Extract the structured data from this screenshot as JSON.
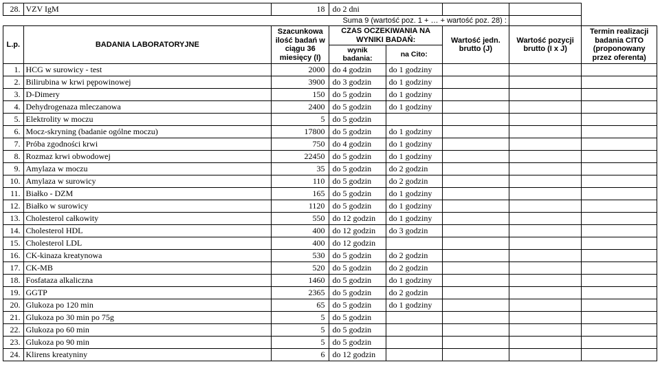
{
  "top_row": {
    "num": "28.",
    "name": "VZV IgM",
    "qty": "18",
    "wait": "do 2 dni"
  },
  "sum_label": "Suma 9 (wartość poz. 1 + … + wartość poz. 28) :",
  "header": {
    "lp": "L.p.",
    "badania": "BADANIA LABORATORYJNE",
    "szac": "Szacunkowa ilość badań w ciągu 36 miesięcy (I)",
    "czas_top": "CZAS OCZEKIWANIA NA WYNIKI BADAŃ:",
    "wynik": "wynik badania:",
    "cito": "na Cito:",
    "wj": "Wartość jedn. brutto (J)",
    "wp": "Wartość pozycji brutto (I x J)",
    "term": "Termin realizacji badania CITO (proponowany przez oferenta)"
  },
  "rows": [
    {
      "n": "1.",
      "name": "HCG w surowicy - test",
      "q": "2000",
      "w": "do 4 godzin",
      "c": "do 1 godziny"
    },
    {
      "n": "2.",
      "name": "Bilirubina w krwi pępowinowej",
      "q": "3900",
      "w": "do 3 godzin",
      "c": "do 1 godziny"
    },
    {
      "n": "3.",
      "name": "D-Dimery",
      "q": "150",
      "w": "do 5 godzin",
      "c": "do 1 godziny"
    },
    {
      "n": "4.",
      "name": "Dehydrogenaza mleczanowa",
      "q": "2400",
      "w": "do 5 godzin",
      "c": "do 1 godziny"
    },
    {
      "n": "5.",
      "name": "Elektrolity w moczu",
      "q": "5",
      "w": "do 5 godzin",
      "c": ""
    },
    {
      "n": "6.",
      "name": "Mocz-skryning (badanie ogólne moczu)",
      "q": "17800",
      "w": "do 5 godzin",
      "c": "do 1 godziny"
    },
    {
      "n": "7.",
      "name": "Próba zgodności krwi",
      "q": "750",
      "w": "do 4 godzin",
      "c": "do 1 godziny"
    },
    {
      "n": "8.",
      "name": "Rozmaz krwi obwodowej",
      "q": "22450",
      "w": "do 5 godzin",
      "c": "do 1 godziny"
    },
    {
      "n": "9.",
      "name": "Amylaza w moczu",
      "q": "35",
      "w": "do 5 godzin",
      "c": "do 2 godzin"
    },
    {
      "n": "10.",
      "name": "Amylaza w surowicy",
      "q": "110",
      "w": "do 5 godzin",
      "c": "do 2 godzin"
    },
    {
      "n": "11.",
      "name": "Białko - DZM",
      "q": "165",
      "w": "do 5 godzin",
      "c": "do 1 godziny"
    },
    {
      "n": "12.",
      "name": "Białko w surowicy",
      "q": "1120",
      "w": "do 5 godzin",
      "c": "do 1 godziny"
    },
    {
      "n": "13.",
      "name": "Cholesterol całkowity",
      "q": "550",
      "w": "do 12 godzin",
      "c": "do 1 godziny"
    },
    {
      "n": "14.",
      "name": "Cholesterol HDL",
      "q": "400",
      "w": "do 12 godzin",
      "c": "do 3 godzin"
    },
    {
      "n": "15.",
      "name": "Cholesterol LDL",
      "q": "400",
      "w": "do 12 godzin",
      "c": ""
    },
    {
      "n": "16.",
      "name": "CK-kinaza kreatynowa",
      "q": "530",
      "w": "do 5 godzin",
      "c": "do 2 godzin"
    },
    {
      "n": "17.",
      "name": "CK-MB",
      "q": "520",
      "w": "do 5 godzin",
      "c": "do 2 godzin"
    },
    {
      "n": "18.",
      "name": "Fosfataza alkaliczna",
      "q": "1460",
      "w": "do 5 godzin",
      "c": "do 1 godziny"
    },
    {
      "n": "19.",
      "name": "GGTP",
      "q": "2365",
      "w": "do 5 godzin",
      "c": "do 2 godzin"
    },
    {
      "n": "20.",
      "name": "Glukoza po 120 min",
      "q": "65",
      "w": "do 5 godzin",
      "c": "do 1 godziny"
    },
    {
      "n": "21.",
      "name": "Glukoza po 30 min po 75g",
      "q": "5",
      "w": "do 5 godzin",
      "c": ""
    },
    {
      "n": "22.",
      "name": "Glukoza po 60 min",
      "q": "5",
      "w": "do 5 godzin",
      "c": ""
    },
    {
      "n": "23.",
      "name": "Glukoza po 90 min",
      "q": "5",
      "w": "do 5 godzin",
      "c": ""
    },
    {
      "n": "24.",
      "name": "Klirens kreatyniny",
      "q": "6",
      "w": "do 12 godzin",
      "c": ""
    }
  ]
}
